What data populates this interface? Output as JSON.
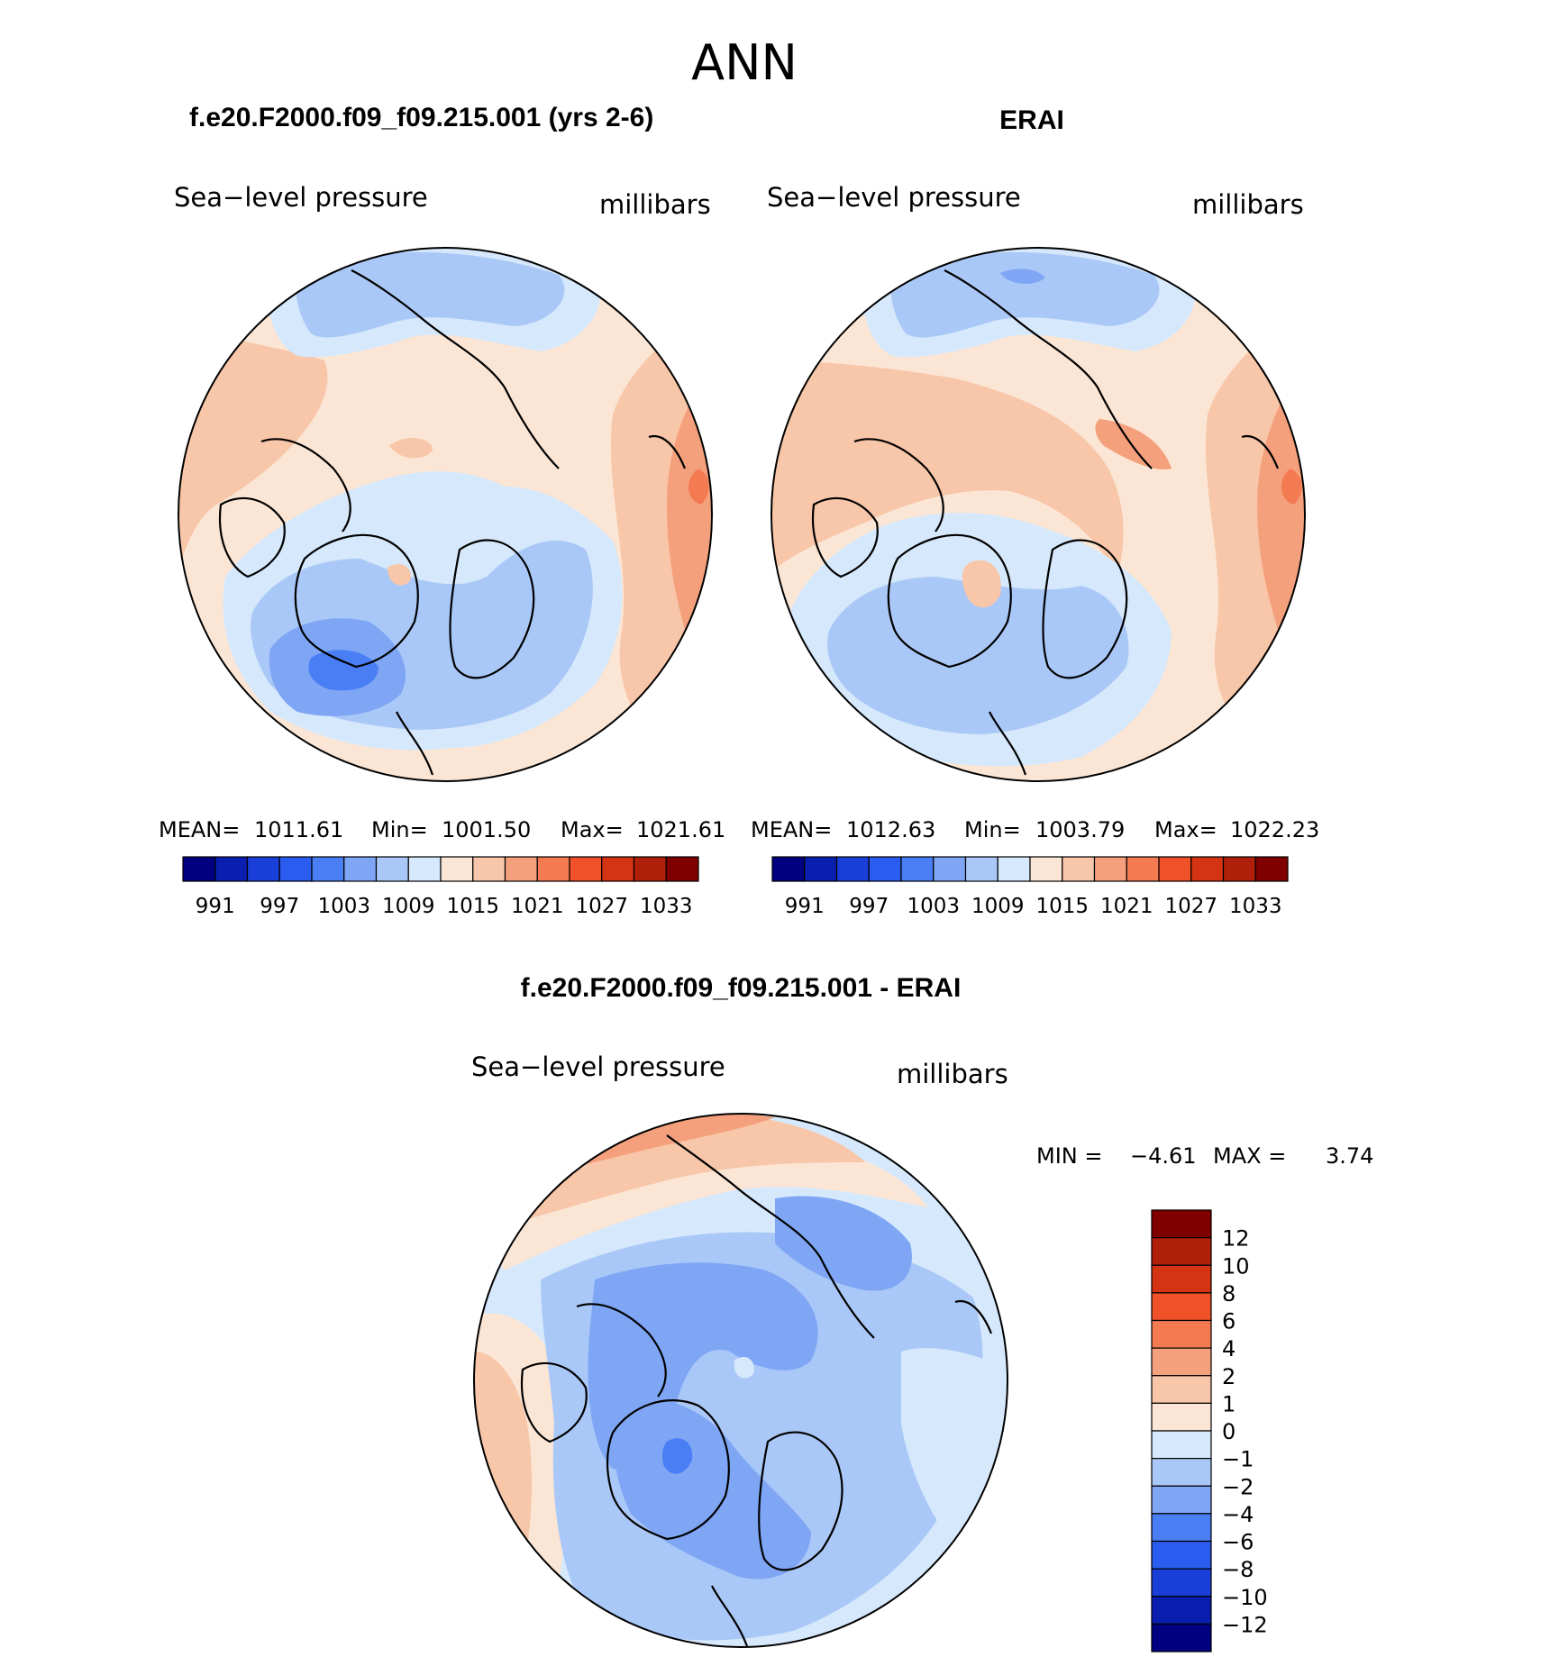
{
  "title": "ANN",
  "panels": [
    {
      "id": "model",
      "case_title": "f.e20.F2000.f09_f09.215.001 (yrs 2-6)",
      "variable": "Sea−level pressure",
      "units": "millibars",
      "stats": {
        "mean_label": "MEAN=",
        "mean": "1011.61",
        "min_label": "Min=",
        "min": "1001.50",
        "max_label": "Max=",
        "max": "1021.61"
      }
    },
    {
      "id": "obs",
      "case_title": "ERAI",
      "variable": "Sea−level pressure",
      "units": "millibars",
      "stats": {
        "mean_label": "MEAN=",
        "mean": "1012.63",
        "min_label": "Min=",
        "min": "1003.79",
        "max_label": "Max=",
        "max": "1022.23"
      }
    },
    {
      "id": "diff",
      "case_title": "f.e20.F2000.f09_f09.215.001 - ERAI",
      "variable": "Sea−level pressure",
      "units": "millibars",
      "minmax": {
        "min_label": "MIN =",
        "min": "−4.61",
        "max_label": "MAX =",
        "max": "3.74"
      }
    }
  ],
  "field_colorbar": {
    "colors": [
      "#000080",
      "#0a1fb0",
      "#1a3fd8",
      "#2b5cf0",
      "#4a7ef5",
      "#7ea6f5",
      "#aac8f7",
      "#d6e8fb",
      "#fbe6d6",
      "#f8c6a8",
      "#f5a07c",
      "#f47a52",
      "#f05128",
      "#d43412",
      "#b01f0a",
      "#800000"
    ],
    "tick_labels": [
      "991",
      "997",
      "1003",
      "1009",
      "1015",
      "1021",
      "1027",
      "1033"
    ]
  },
  "diff_colorbar": {
    "colors_top_to_bottom": [
      "#800000",
      "#b01f0a",
      "#d43412",
      "#f05128",
      "#f47a52",
      "#f5a07c",
      "#f8c6a8",
      "#fbe6d6",
      "#d6e8fb",
      "#aac8f7",
      "#7ea6f5",
      "#4a7ef5",
      "#2b5cf0",
      "#1a3fd8",
      "#0a1fb0",
      "#000080"
    ],
    "tick_labels": [
      "12",
      "10",
      "8",
      "6",
      "4",
      "2",
      "1",
      "0",
      "−1",
      "−2",
      "−4",
      "−6",
      "−8",
      "−10",
      "−12"
    ]
  },
  "map_colors": {
    "blue_light": "#d6e8fb",
    "blue_mid": "#aac8f7",
    "blue_med": "#7ea6f5",
    "blue_dark": "#4a7ef5",
    "red_light": "#fbe6d6",
    "red_mid": "#f8c6a8",
    "red_med": "#f5a07c",
    "red_dark": "#f47a52"
  }
}
